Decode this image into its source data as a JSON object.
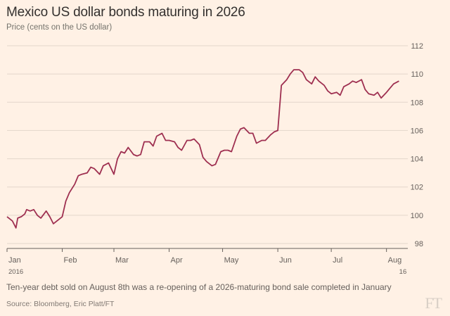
{
  "chart_data": {
    "type": "line",
    "title": "Mexico US dollar bonds maturing in 2026",
    "subtitle": "Price (cents on the US dollar)",
    "xlabel": "",
    "ylabel": "Price (cents on the US dollar)",
    "ylim": [
      98,
      112
    ],
    "y_ticks": [
      "98",
      "100",
      "102",
      "104",
      "106",
      "108",
      "110",
      "112"
    ],
    "x_ticks": [
      {
        "label": "Jan",
        "date": "2016-01-01"
      },
      {
        "label": "Feb",
        "date": "2016-02-01"
      },
      {
        "label": "Mar",
        "date": "2016-03-01"
      },
      {
        "label": "Apr",
        "date": "2016-04-01"
      },
      {
        "label": "May",
        "date": "2016-05-01"
      },
      {
        "label": "Jun",
        "date": "2016-06-01"
      },
      {
        "label": "Jul",
        "date": "2016-07-01"
      },
      {
        "label": "Aug",
        "date": "2016-08-01"
      }
    ],
    "year_start_label": "2016",
    "year_end_label": "16",
    "grid": "horizontal",
    "line_color": "#9e2f50",
    "series": [
      {
        "x": [
          "2016-01-01",
          "2016-01-04",
          "2016-01-06",
          "2016-01-07",
          "2016-01-09",
          "2016-01-11",
          "2016-01-12",
          "2016-01-14",
          "2016-01-16",
          "2016-01-18",
          "2016-01-20",
          "2016-01-23",
          "2016-01-25",
          "2016-01-27",
          "2016-01-30",
          "2016-02-01",
          "2016-02-03",
          "2016-02-05",
          "2016-02-08",
          "2016-02-10",
          "2016-02-12",
          "2016-02-15",
          "2016-02-17",
          "2016-02-19",
          "2016-02-22",
          "2016-02-24",
          "2016-02-27",
          "2016-03-01",
          "2016-03-03",
          "2016-03-05",
          "2016-03-07",
          "2016-03-09",
          "2016-03-12",
          "2016-03-14",
          "2016-03-16",
          "2016-03-18",
          "2016-03-21",
          "2016-03-23",
          "2016-03-25",
          "2016-03-28",
          "2016-03-30",
          "2016-04-01",
          "2016-04-04",
          "2016-04-06",
          "2016-04-08",
          "2016-04-11",
          "2016-04-13",
          "2016-04-15",
          "2016-04-18",
          "2016-04-20",
          "2016-04-22",
          "2016-04-25",
          "2016-04-27",
          "2016-04-30",
          "2016-05-02",
          "2016-05-04",
          "2016-05-06",
          "2016-05-09",
          "2016-05-11",
          "2016-05-13",
          "2016-05-16",
          "2016-05-18",
          "2016-05-20",
          "2016-05-23",
          "2016-05-25",
          "2016-05-28",
          "2016-05-30",
          "2016-06-01",
          "2016-06-03",
          "2016-06-06",
          "2016-06-08",
          "2016-06-10",
          "2016-06-13",
          "2016-06-15",
          "2016-06-17",
          "2016-06-20",
          "2016-06-22",
          "2016-06-24",
          "2016-06-27",
          "2016-06-29",
          "2016-07-01",
          "2016-07-04",
          "2016-07-06",
          "2016-07-08",
          "2016-07-11",
          "2016-07-13",
          "2016-07-15",
          "2016-07-18",
          "2016-07-20",
          "2016-07-22",
          "2016-07-25",
          "2016-07-27",
          "2016-07-29",
          "2016-08-01",
          "2016-08-03",
          "2016-08-05",
          "2016-08-08"
        ],
        "y": [
          99.9,
          99.6,
          99.1,
          99.8,
          99.9,
          100.1,
          100.4,
          100.3,
          100.4,
          100.0,
          99.8,
          100.3,
          99.9,
          99.4,
          99.7,
          99.9,
          101.0,
          101.6,
          102.2,
          102.8,
          102.9,
          103.0,
          103.4,
          103.3,
          102.9,
          103.5,
          103.7,
          102.9,
          104.0,
          104.5,
          104.4,
          104.8,
          104.3,
          104.2,
          104.3,
          105.2,
          105.2,
          104.9,
          105.6,
          105.8,
          105.3,
          105.3,
          105.2,
          104.8,
          104.6,
          105.3,
          105.3,
          105.4,
          105.0,
          104.1,
          103.8,
          103.5,
          103.6,
          104.5,
          104.6,
          104.6,
          104.5,
          105.6,
          106.1,
          106.2,
          105.8,
          105.8,
          105.1,
          105.3,
          105.3,
          105.7,
          105.9,
          106.0,
          109.2,
          109.6,
          110.0,
          110.3,
          110.3,
          110.1,
          109.6,
          109.3,
          109.8,
          109.5,
          109.2,
          108.8,
          108.6,
          108.7,
          108.5,
          109.1,
          109.3,
          109.5,
          109.4,
          109.6,
          108.9,
          108.6,
          108.5,
          108.7,
          108.3,
          108.7,
          109.0,
          109.3,
          109.5
        ]
      }
    ]
  },
  "footnote": "Ten-year debt sold on August 8th was a re-opening of a 2026-maturing bond sale completed in January",
  "source": "Source: Bloomberg, Eric Platt/FT",
  "logo_text": "FT"
}
